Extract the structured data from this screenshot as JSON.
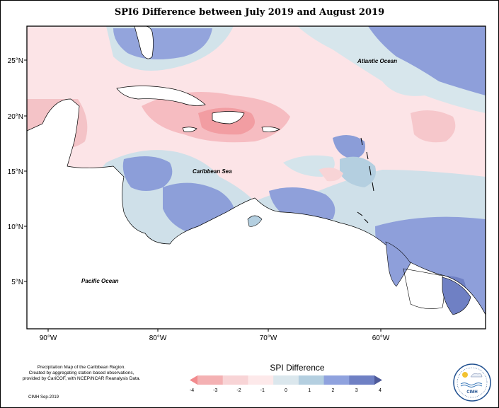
{
  "title": "SPI6 Difference between July 2019 and August 2019",
  "map": {
    "lat_labels": [
      "25°N",
      "20°N",
      "15°N",
      "10°N",
      "5°N"
    ],
    "lon_labels": [
      "90°W",
      "80°W",
      "70°W",
      "60°W"
    ],
    "ocean_labels": {
      "atlantic": "Atlantic Ocean",
      "caribbean": "Caribbean Sea",
      "pacific": "Pacific Ocean"
    }
  },
  "legend": {
    "title": "SPI Difference",
    "ticks": [
      "-4",
      "-3",
      "-2",
      "-1",
      "0",
      "1",
      "2",
      "3",
      "4"
    ],
    "colors": [
      "#f28b8e",
      "#f4b1b3",
      "#f8d4d6",
      "#fde9ea",
      "#dbe7ed",
      "#b4cfe0",
      "#8fa2de",
      "#6f80c4",
      "#4e5a9a"
    ]
  },
  "caption": {
    "lines": [
      "Precipitation Map of the Caribbean Region.",
      "Created by aggregating station based observations,",
      "provided by CariCOF, with NCEP/NCAR Reanalysis Data."
    ],
    "credit": "CIMH  Sep-2019"
  },
  "logo": {
    "text": "CIMH"
  },
  "colors": {
    "land": "#ffffff",
    "coast": "#000000",
    "frame": "#000000"
  }
}
